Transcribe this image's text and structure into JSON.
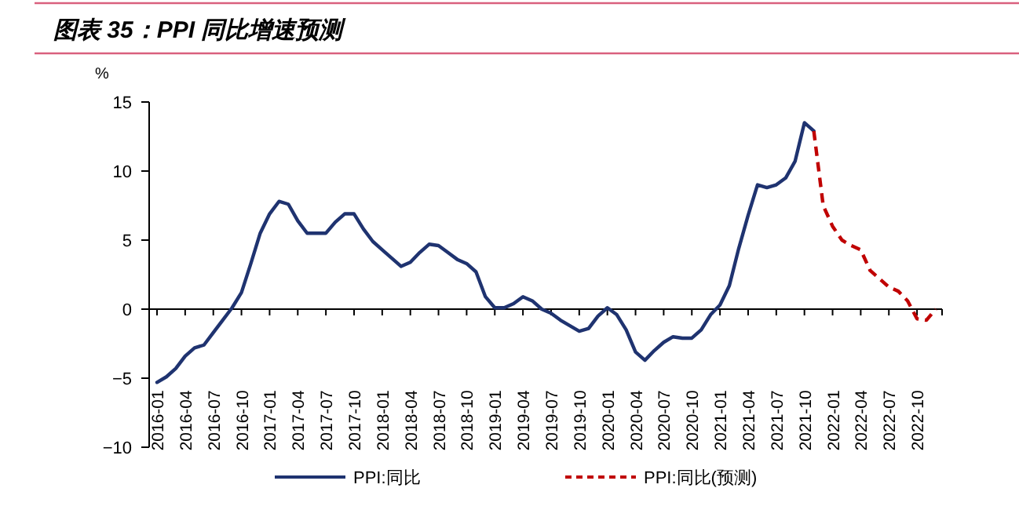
{
  "chart_data": {
    "type": "line",
    "title": "图表 35：PPI 同比增速预测",
    "ylabel": "%",
    "categories": [
      "2016-01",
      null,
      null,
      "2016-04",
      null,
      null,
      "2016-07",
      null,
      null,
      "2016-10",
      null,
      null,
      "2017-01",
      null,
      null,
      "2017-04",
      null,
      null,
      "2017-07",
      null,
      null,
      "2017-10",
      null,
      null,
      "2018-01",
      null,
      null,
      "2018-04",
      null,
      null,
      "2018-07",
      null,
      null,
      "2018-10",
      null,
      null,
      "2019-01",
      null,
      null,
      "2019-04",
      null,
      null,
      "2019-07",
      null,
      null,
      "2019-10",
      null,
      null,
      "2020-01",
      null,
      null,
      "2020-04",
      null,
      null,
      "2020-07",
      null,
      null,
      "2020-10",
      null,
      null,
      "2021-01",
      null,
      null,
      "2021-04",
      null,
      null,
      "2021-07",
      null,
      null,
      "2021-10",
      null,
      null,
      "2022-01",
      null,
      null,
      "2022-04",
      null,
      null,
      "2022-07",
      null,
      null,
      "2022-10",
      null,
      null
    ],
    "series": [
      {
        "name": "PPI:同比",
        "color": "#1f3370",
        "line_style": "solid",
        "values": [
          -5.3,
          -4.9,
          -4.3,
          -3.4,
          -2.8,
          -2.6,
          -1.7,
          -0.8,
          0.1,
          1.2,
          3.3,
          5.5,
          6.9,
          7.8,
          7.6,
          6.4,
          5.5,
          5.5,
          5.5,
          6.3,
          6.9,
          6.9,
          5.8,
          4.9,
          4.3,
          3.7,
          3.1,
          3.4,
          4.1,
          4.7,
          4.6,
          4.1,
          3.6,
          3.3,
          2.7,
          0.9,
          0.1,
          0.1,
          0.4,
          0.9,
          0.6,
          0.0,
          -0.3,
          -0.8,
          -1.2,
          -1.6,
          -1.4,
          -0.5,
          0.1,
          -0.4,
          -1.5,
          -3.1,
          -3.7,
          -3.0,
          -2.4,
          -2.0,
          -2.1,
          -2.1,
          -1.5,
          -0.4,
          0.3,
          1.7,
          4.4,
          6.8,
          9.0,
          8.8,
          9.0,
          9.5,
          10.7,
          13.5,
          12.9,
          null,
          null,
          null,
          null,
          null,
          null,
          null,
          null,
          null,
          null,
          null,
          null,
          null
        ]
      },
      {
        "name": "PPI:同比(预测)",
        "color": "#c00000",
        "line_style": "dashed",
        "values": [
          null,
          null,
          null,
          null,
          null,
          null,
          null,
          null,
          null,
          null,
          null,
          null,
          null,
          null,
          null,
          null,
          null,
          null,
          null,
          null,
          null,
          null,
          null,
          null,
          null,
          null,
          null,
          null,
          null,
          null,
          null,
          null,
          null,
          null,
          null,
          null,
          null,
          null,
          null,
          null,
          null,
          null,
          null,
          null,
          null,
          null,
          null,
          null,
          null,
          null,
          null,
          null,
          null,
          null,
          null,
          null,
          null,
          null,
          null,
          null,
          null,
          null,
          null,
          null,
          null,
          null,
          null,
          null,
          null,
          null,
          12.9,
          7.5,
          6.0,
          5.0,
          4.6,
          4.3,
          2.8,
          2.2,
          1.6,
          1.3,
          0.6,
          -0.7,
          -0.8,
          0.0
        ]
      }
    ],
    "ylim": [
      -10,
      15
    ],
    "yticks": [
      -10,
      -5,
      0,
      5,
      10,
      15
    ],
    "legend": "bottom"
  }
}
